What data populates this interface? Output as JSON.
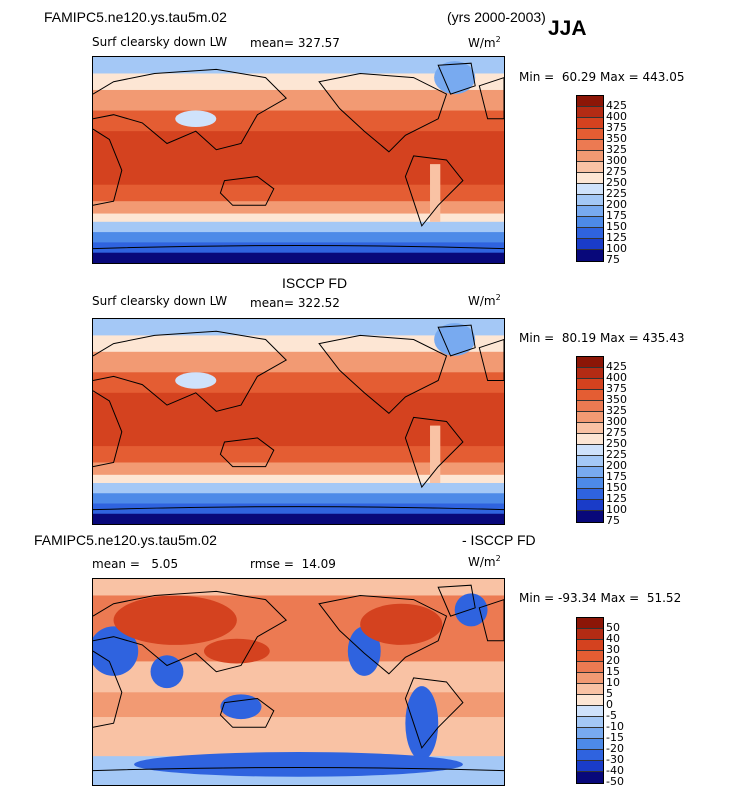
{
  "header": {
    "case_name": "FAMIPC5.ne120.ys.tau5m.02",
    "years": "(yrs 2000-2003)",
    "season": "JJA"
  },
  "colors": {
    "abs_scale": [
      "#08087a",
      "#1a3cc8",
      "#2f63df",
      "#4d8ae8",
      "#78aaf0",
      "#a4c8f6",
      "#cfe2fb",
      "#fde6d4",
      "#f9c2a4",
      "#f29a73",
      "#ec7a52",
      "#e45d33",
      "#d4421f",
      "#b32b14",
      "#8c1607"
    ],
    "diff_scale": [
      "#08087a",
      "#1a3cc8",
      "#2f63df",
      "#4d8ae8",
      "#78aaf0",
      "#a4c8f6",
      "#cfe2fb",
      "#fde6d4",
      "#f9c2a4",
      "#f29a73",
      "#ec7a52",
      "#e45d33",
      "#d4421f",
      "#b32b14",
      "#8c1607"
    ]
  },
  "chart_data": [
    {
      "type": "heatmap",
      "title": "FAMIPC5.ne120.ys.tau5m.02",
      "variable": "Surf clearsky down LW",
      "units": "W/m2",
      "mean_label": "mean=",
      "mean": "327.57",
      "min_label": "Min =",
      "min": "60.29",
      "max_label": "Max =",
      "max": "443.05",
      "colorbar_levels": [
        "425",
        "400",
        "375",
        "350",
        "325",
        "300",
        "275",
        "250",
        "225",
        "200",
        "175",
        "150",
        "125",
        "100",
        "75"
      ]
    },
    {
      "type": "heatmap",
      "title": "ISCCP FD",
      "variable": "Surf clearsky down LW",
      "units": "W/m2",
      "mean_label": "mean=",
      "mean": "322.52",
      "min_label": "Min =",
      "min": "80.19",
      "max_label": "Max =",
      "max": "435.43",
      "colorbar_levels": [
        "425",
        "400",
        "375",
        "350",
        "325",
        "300",
        "275",
        "250",
        "225",
        "200",
        "175",
        "150",
        "125",
        "100",
        "75"
      ]
    },
    {
      "type": "heatmap",
      "title": "FAMIPC5.ne120.ys.tau5m.02",
      "title_right": "- ISCCP FD",
      "units": "W/m2",
      "mean_label": "mean =",
      "mean": "5.05",
      "rmse_label": "rmse =",
      "rmse": "14.09",
      "min_label": "Min =",
      "min": "-93.34",
      "max_label": "Max =",
      "max": "51.52",
      "colorbar_levels": [
        "50",
        "40",
        "30",
        "20",
        "15",
        "10",
        "5",
        "0",
        "-5",
        "-10",
        "-15",
        "-20",
        "-30",
        "-40",
        "-50"
      ]
    }
  ],
  "units_base": "W/m",
  "units_exp": "2"
}
